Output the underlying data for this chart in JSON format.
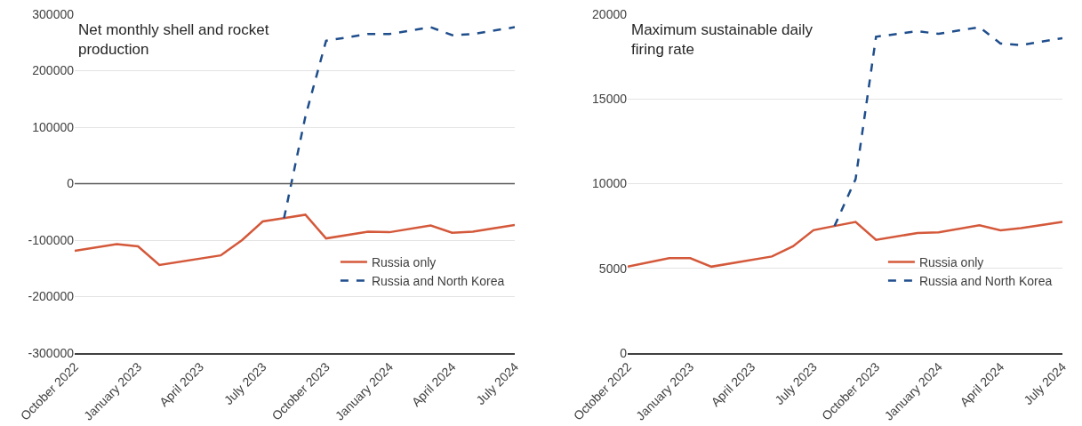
{
  "chart_data": [
    {
      "type": "line",
      "title": "Net monthly shell and rocket production",
      "xlim": [
        "2022-10",
        "2024-07"
      ],
      "xticks": [
        {
          "value": "2022-10",
          "label": "October 2022"
        },
        {
          "value": "2023-01",
          "label": "January 2023"
        },
        {
          "value": "2023-04",
          "label": "April 2023"
        },
        {
          "value": "2023-07",
          "label": "July 2023"
        },
        {
          "value": "2023-10",
          "label": "October 2023"
        },
        {
          "value": "2024-01",
          "label": "January 2024"
        },
        {
          "value": "2024-04",
          "label": "April 2024"
        },
        {
          "value": "2024-07",
          "label": "July 2024"
        }
      ],
      "ylim": [
        -300000,
        300000
      ],
      "yticks": [
        -300000,
        -200000,
        -100000,
        0,
        100000,
        200000,
        300000
      ],
      "grid": "y",
      "legend": "bottom right",
      "ref_lines": [
        {
          "axis": "y",
          "value": 0,
          "color": "#595959"
        }
      ],
      "series": [
        {
          "name": "Russia only",
          "color": "#d4583a",
          "line_style": "solid",
          "x": [
            "2022-10",
            "2022-12",
            "2023-01",
            "2023-02",
            "2023-05",
            "2023-06",
            "2023-07",
            "2023-08",
            "2023-09",
            "2023-10",
            "2023-12",
            "2024-01",
            "2024-03",
            "2024-04",
            "2024-05",
            "2024-07"
          ],
          "values": [
            -119000,
            -107000,
            -111000,
            -144000,
            -127000,
            -100000,
            -67000,
            -61000,
            -55000,
            -97000,
            -85000,
            -86000,
            -74000,
            -87000,
            -85000,
            -73000
          ]
        },
        {
          "name": "Russia and North Korea",
          "color": "#1f4e8c",
          "line_style": "dashed",
          "x": [
            "2023-08",
            "2023-09",
            "2023-10",
            "2023-12",
            "2024-01",
            "2024-03",
            "2024-04",
            "2024-05",
            "2024-07"
          ],
          "values": [
            -61000,
            119000,
            253000,
            265000,
            265000,
            277000,
            263000,
            265000,
            277000
          ]
        }
      ]
    },
    {
      "type": "line",
      "title": "Maximum sustainable daily firing rate",
      "xlim": [
        "2022-10",
        "2024-07"
      ],
      "xticks": [
        {
          "value": "2022-10",
          "label": "October 2022"
        },
        {
          "value": "2023-01",
          "label": "January 2023"
        },
        {
          "value": "2023-04",
          "label": "April 2023"
        },
        {
          "value": "2023-07",
          "label": "July 2023"
        },
        {
          "value": "2023-10",
          "label": "October 2023"
        },
        {
          "value": "2024-01",
          "label": "January 2024"
        },
        {
          "value": "2024-04",
          "label": "April 2024"
        },
        {
          "value": "2024-07",
          "label": "July 2024"
        }
      ],
      "ylim": [
        0,
        20000
      ],
      "yticks": [
        0,
        5000,
        10000,
        15000,
        20000
      ],
      "grid": "y",
      "legend": "bottom right",
      "series": [
        {
          "name": "Russia only",
          "color": "#d4583a",
          "line_style": "solid",
          "x": [
            "2022-10",
            "2022-12",
            "2023-01",
            "2023-02",
            "2023-05",
            "2023-06",
            "2023-07",
            "2023-08",
            "2023-09",
            "2023-10",
            "2023-12",
            "2024-01",
            "2024-03",
            "2024-04",
            "2024-05",
            "2024-07"
          ],
          "values": [
            5100,
            5600,
            5600,
            5100,
            5700,
            6300,
            7250,
            7500,
            7740,
            6680,
            7090,
            7130,
            7540,
            7250,
            7370,
            7740
          ]
        },
        {
          "name": "Russia and North Korea",
          "color": "#1f4e8c",
          "line_style": "dashed",
          "x": [
            "2023-08",
            "2023-09",
            "2023-10",
            "2023-12",
            "2024-01",
            "2024-03",
            "2024-04",
            "2024-05",
            "2024-07"
          ],
          "values": [
            7500,
            10270,
            18670,
            19000,
            18840,
            19240,
            18270,
            18180,
            18590
          ]
        }
      ]
    }
  ]
}
